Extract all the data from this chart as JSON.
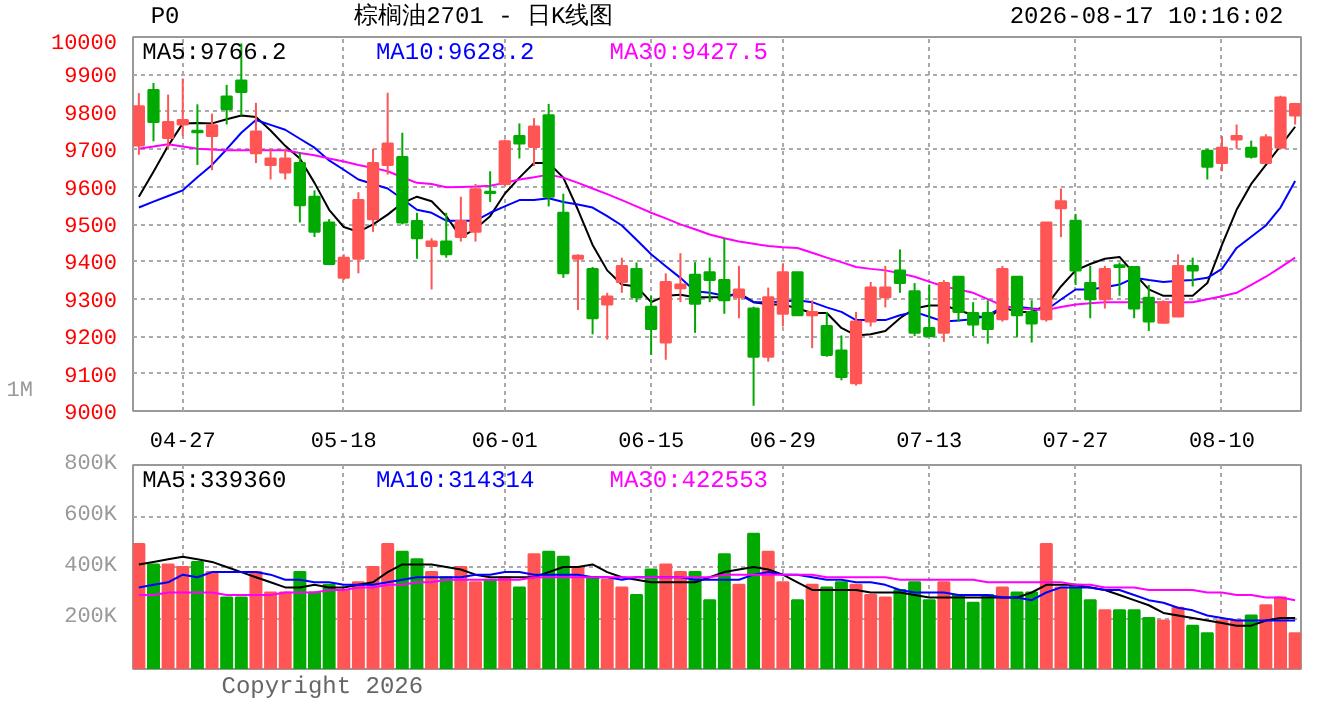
{
  "chart_data": [
    {
      "type": "candlestick",
      "title": "棕榈油2701 - 日K线图",
      "annotations": [
        "P0",
        "2026-08-17 10:16:02",
        "1M"
      ],
      "categories": [
        null,
        null,
        null,
        "04-27",
        null,
        null,
        null,
        null,
        null,
        null,
        null,
        null,
        null,
        null,
        "05-18",
        null,
        null,
        null,
        null,
        null,
        null,
        null,
        null,
        null,
        null,
        "06-01",
        null,
        null,
        null,
        null,
        null,
        null,
        null,
        null,
        null,
        "06-15",
        null,
        null,
        null,
        null,
        null,
        null,
        null,
        null,
        "06-29",
        null,
        null,
        null,
        null,
        null,
        null,
        null,
        null,
        null,
        "07-13",
        null,
        null,
        null,
        null,
        null,
        null,
        null,
        null,
        null,
        "07-27",
        null,
        null,
        null,
        null,
        null,
        null,
        null,
        null,
        null,
        "08-10",
        null,
        null,
        null,
        null,
        null
      ],
      "ohlc": [
        [
          9710,
          9850,
          9685,
          9815
        ],
        [
          9858,
          9877,
          9721,
          9773
        ],
        [
          9730,
          9846,
          9701,
          9773
        ],
        [
          9766,
          9889,
          9735,
          9778
        ],
        [
          9749,
          9820,
          9658,
          9745
        ],
        [
          9735,
          9795,
          9644,
          9764
        ],
        [
          9841,
          9872,
          9766,
          9807
        ],
        [
          9884,
          9983,
          9790,
          9853
        ],
        [
          9689,
          9824,
          9663,
          9747
        ],
        [
          9658,
          9701,
          9619,
          9675
        ],
        [
          9638,
          9701,
          9619,
          9675
        ],
        [
          9663,
          9692,
          9504,
          9550
        ],
        [
          9573,
          9590,
          9465,
          9479
        ],
        [
          9504,
          9513,
          9390,
          9393
        ],
        [
          9356,
          9419,
          9350,
          9410
        ],
        [
          9407,
          9585,
          9368,
          9564
        ],
        [
          9513,
          9701,
          9479,
          9663
        ],
        [
          9658,
          9851,
          9632,
          9715
        ],
        [
          9679,
          9744,
          9499,
          9504
        ],
        [
          9508,
          9530,
          9407,
          9462
        ],
        [
          9441,
          9462,
          9325,
          9453
        ],
        [
          9453,
          9530,
          9410,
          9419
        ],
        [
          9465,
          9573,
          9453,
          9508
        ],
        [
          9479,
          9607,
          9453,
          9593
        ],
        [
          9586,
          9641,
          9559,
          9583
        ],
        [
          9607,
          9726,
          9602,
          9721
        ],
        [
          9735,
          9769,
          9675,
          9715
        ],
        [
          9706,
          9783,
          9655,
          9761
        ],
        [
          9791,
          9821,
          9547,
          9573
        ],
        [
          9530,
          9581,
          9356,
          9368
        ],
        [
          9407,
          9419,
          9270,
          9415
        ],
        [
          9380,
          9385,
          9205,
          9248
        ],
        [
          9285,
          9316,
          9191,
          9306
        ],
        [
          9345,
          9410,
          9316,
          9388
        ],
        [
          9380,
          9397,
          9291,
          9304
        ],
        [
          9279,
          9308,
          9150,
          9219
        ],
        [
          9183,
          9368,
          9137,
          9345
        ],
        [
          9328,
          9422,
          9291,
          9338
        ],
        [
          9364,
          9398,
          9209,
          9287
        ],
        [
          9371,
          9410,
          9291,
          9350
        ],
        [
          9350,
          9462,
          9260,
          9296
        ],
        [
          9304,
          9388,
          9248,
          9325
        ],
        [
          9274,
          9279,
          9014,
          9145
        ],
        [
          9145,
          9330,
          9132,
          9304
        ],
        [
          9260,
          9393,
          9226,
          9371
        ],
        [
          9371,
          9371,
          9256,
          9256
        ],
        [
          9256,
          9296,
          9168,
          9265
        ],
        [
          9227,
          9265,
          9145,
          9150
        ],
        [
          9162,
          9202,
          9082,
          9091
        ],
        [
          9074,
          9265,
          9068,
          9239
        ],
        [
          9239,
          9345,
          9226,
          9330
        ],
        [
          9304,
          9388,
          9277,
          9330
        ],
        [
          9376,
          9432,
          9316,
          9342
        ],
        [
          9320,
          9342,
          9200,
          9209
        ],
        [
          9222,
          9338,
          9200,
          9200
        ],
        [
          9209,
          9350,
          9185,
          9342
        ],
        [
          9359,
          9359,
          9239,
          9265
        ],
        [
          9262,
          9291,
          9200,
          9231
        ],
        [
          9262,
          9296,
          9180,
          9219
        ],
        [
          9245,
          9388,
          9239,
          9380
        ],
        [
          9359,
          9359,
          9197,
          9256
        ],
        [
          9265,
          9296,
          9183,
          9234
        ],
        [
          9245,
          9504,
          9239,
          9504
        ],
        [
          9542,
          9595,
          9465,
          9561
        ],
        [
          9509,
          9527,
          9337,
          9376
        ],
        [
          9342,
          9388,
          9248,
          9299
        ],
        [
          9299,
          9388,
          9274,
          9380
        ],
        [
          9390,
          9397,
          9308,
          9385
        ],
        [
          9385,
          9385,
          9248,
          9274
        ],
        [
          9303,
          9337,
          9214,
          9239
        ],
        [
          9236,
          9296,
          9234,
          9291
        ],
        [
          9253,
          9419,
          9251,
          9388
        ],
        [
          9388,
          9410,
          9333,
          9376
        ],
        [
          9696,
          9701,
          9619,
          9653
        ],
        [
          9663,
          9735,
          9641,
          9704
        ],
        [
          9726,
          9766,
          9701,
          9735
        ],
        [
          9704,
          9723,
          9675,
          9680
        ],
        [
          9663,
          9740,
          9663,
          9732
        ],
        [
          9704,
          9843,
          9701,
          9838
        ],
        [
          9790,
          9824,
          9766,
          9821
        ]
      ],
      "colors": [
        "#ff5555",
        "#00aa00",
        "#ff5555",
        "#ff5555",
        "#00aa00",
        "#ff5555",
        "#00aa00",
        "#00aa00",
        "#ff5555",
        "#ff5555",
        "#ff5555",
        "#00aa00",
        "#00aa00",
        "#00aa00",
        "#ff5555",
        "#ff5555",
        "#ff5555",
        "#ff5555",
        "#00aa00",
        "#00aa00",
        "#ff5555",
        "#00aa00",
        "#ff5555",
        "#ff5555",
        "#00aa00",
        "#ff5555",
        "#00aa00",
        "#ff5555",
        "#00aa00",
        "#00aa00",
        "#ff5555",
        "#00aa00",
        "#ff5555",
        "#ff5555",
        "#00aa00",
        "#00aa00",
        "#ff5555",
        "#ff5555",
        "#00aa00",
        "#00aa00",
        "#00aa00",
        "#ff5555",
        "#00aa00",
        "#ff5555",
        "#ff5555",
        "#00aa00",
        "#ff5555",
        "#00aa00",
        "#00aa00",
        "#ff5555",
        "#ff5555",
        "#ff5555",
        "#00aa00",
        "#00aa00",
        "#00aa00",
        "#ff5555",
        "#00aa00",
        "#00aa00",
        "#00aa00",
        "#ff5555",
        "#00aa00",
        "#00aa00",
        "#ff5555",
        "#ff5555",
        "#00aa00",
        "#00aa00",
        "#ff5555",
        "#00aa00",
        "#00aa00",
        "#00aa00",
        "#ff5555",
        "#ff5555",
        "#00aa00",
        "#00aa00",
        "#ff5555",
        "#ff5555",
        "#00aa00",
        "#ff5555",
        "#ff5555",
        "#ff5555"
      ],
      "series": [
        {
          "name": "MA5:9766.2",
          "type": "line",
          "color": "#000000",
          "values": [
            9573,
            9640,
            9709,
            9769,
            9770,
            9769,
            9780,
            9790,
            9786,
            9750,
            9709,
            9675,
            9610,
            9538,
            9492,
            9479,
            9499,
            9525,
            9556,
            9573,
            9561,
            9521,
            9465,
            9487,
            9521,
            9581,
            9624,
            9663,
            9663,
            9624,
            9538,
            9444,
            9376,
            9338,
            9333,
            9291,
            9308,
            9311,
            9304,
            9304,
            9304,
            9316,
            9291,
            9285,
            9285,
            9274,
            9262,
            9262,
            9222,
            9202,
            9205,
            9214,
            9248,
            9274,
            9282,
            9282,
            9270,
            9256,
            9248,
            9277,
            9265,
            9265,
            9282,
            9333,
            9376,
            9393,
            9407,
            9412,
            9368,
            9325,
            9308,
            9308,
            9308,
            9342,
            9444,
            9538,
            9607,
            9658,
            9709,
            9760
          ]
        },
        {
          "name": "MA10:9628.2",
          "type": "line",
          "color": "#0000ff",
          "values": [
            9544,
            9560,
            9575,
            9590,
            9625,
            9658,
            9700,
            9744,
            9778,
            9765,
            9752,
            9728,
            9704,
            9670,
            9645,
            9619,
            9607,
            9595,
            9567,
            9538,
            9530,
            9509,
            9509,
            9509,
            9530,
            9547,
            9564,
            9564,
            9569,
            9559,
            9552,
            9544,
            9521,
            9496,
            9458,
            9419,
            9387,
            9356,
            9320,
            9316,
            9308,
            9311,
            9291,
            9291,
            9293,
            9296,
            9291,
            9277,
            9265,
            9243,
            9243,
            9243,
            9256,
            9265,
            9252,
            9239,
            9242,
            9245,
            9256,
            9277,
            9279,
            9274,
            9270,
            9298,
            9325,
            9325,
            9331,
            9338,
            9356,
            9350,
            9345,
            9348,
            9350,
            9356,
            9380,
            9436,
            9466,
            9496,
            9544,
            9615
          ]
        },
        {
          "name": "MA30:9427.5",
          "type": "line",
          "color": "#ff00ff",
          "values": [
            9701,
            9707,
            9713,
            9707,
            9701,
            9699,
            9697,
            9697,
            9697,
            9697,
            9697,
            9690,
            9684,
            9675,
            9667,
            9658,
            9650,
            9641,
            9625,
            9610,
            9607,
            9598,
            9599,
            9600,
            9602,
            9610,
            9619,
            9625,
            9632,
            9624,
            9610,
            9595,
            9580,
            9564,
            9547,
            9530,
            9515,
            9499,
            9486,
            9472,
            9462,
            9453,
            9447,
            9441,
            9438,
            9436,
            9423,
            9410,
            9398,
            9385,
            9380,
            9376,
            9368,
            9359,
            9346,
            9333,
            9325,
            9316,
            9299,
            9282,
            9274,
            9272,
            9270,
            9278,
            9285,
            9288,
            9291,
            9291,
            9291,
            9291,
            9291,
            9291,
            9291,
            9299,
            9307,
            9316,
            9337,
            9359,
            9384,
            9410
          ]
        }
      ],
      "ylim": [
        9000,
        10000
      ],
      "yticks": [
        9000,
        9100,
        9200,
        9300,
        9400,
        9500,
        9600,
        9700,
        9800,
        9900,
        10000
      ],
      "grid": true,
      "legend": "top left",
      "line_style": "solid"
    },
    {
      "type": "bar",
      "annotations": [
        "Copyright 2026"
      ],
      "categories": [
        null,
        null,
        null,
        null,
        null,
        null,
        null,
        null,
        null,
        null,
        null,
        null,
        null,
        null,
        null,
        null,
        null,
        null,
        null,
        null,
        null,
        null,
        null,
        null,
        null,
        null,
        null,
        null,
        null,
        null,
        null,
        null,
        null,
        null,
        null,
        null,
        null,
        null,
        null,
        null,
        null,
        null,
        null,
        null,
        null,
        null,
        null,
        null,
        null,
        null,
        null,
        null,
        null,
        null,
        null,
        null,
        null,
        null,
        null,
        null,
        null,
        null,
        null,
        null,
        null,
        null,
        null,
        null,
        null,
        null,
        null,
        null,
        null,
        null,
        null,
        null,
        null,
        null,
        null,
        null
      ],
      "series": [
        {
          "type": "bar",
          "values": [
            490000,
            410000,
            410000,
            400000,
            420000,
            380000,
            280000,
            280000,
            380000,
            300000,
            300000,
            380000,
            300000,
            330000,
            310000,
            340000,
            400000,
            490000,
            460000,
            430000,
            380000,
            360000,
            400000,
            340000,
            350000,
            360000,
            320000,
            450000,
            460000,
            440000,
            400000,
            360000,
            350000,
            320000,
            290000,
            390000,
            410000,
            380000,
            380000,
            270000,
            450000,
            330000,
            530000,
            460000,
            340000,
            270000,
            330000,
            320000,
            340000,
            330000,
            290000,
            280000,
            310000,
            340000,
            270000,
            340000,
            290000,
            260000,
            290000,
            320000,
            300000,
            300000,
            490000,
            320000,
            330000,
            270000,
            230000,
            230000,
            230000,
            200000,
            190000,
            240000,
            170000,
            140000,
            190000,
            190000,
            210000,
            250000,
            280000,
            140000
          ],
          "colors": [
            "#ff5555",
            "#00aa00",
            "#ff5555",
            "#ff5555",
            "#00aa00",
            "#ff5555",
            "#00aa00",
            "#00aa00",
            "#ff5555",
            "#ff5555",
            "#ff5555",
            "#00aa00",
            "#00aa00",
            "#00aa00",
            "#ff5555",
            "#ff5555",
            "#ff5555",
            "#ff5555",
            "#00aa00",
            "#00aa00",
            "#ff5555",
            "#00aa00",
            "#ff5555",
            "#ff5555",
            "#00aa00",
            "#ff5555",
            "#00aa00",
            "#ff5555",
            "#00aa00",
            "#00aa00",
            "#ff5555",
            "#00aa00",
            "#ff5555",
            "#ff5555",
            "#00aa00",
            "#00aa00",
            "#ff5555",
            "#ff5555",
            "#00aa00",
            "#00aa00",
            "#00aa00",
            "#ff5555",
            "#00aa00",
            "#ff5555",
            "#ff5555",
            "#00aa00",
            "#ff5555",
            "#00aa00",
            "#00aa00",
            "#ff5555",
            "#ff5555",
            "#ff5555",
            "#00aa00",
            "#00aa00",
            "#00aa00",
            "#ff5555",
            "#00aa00",
            "#00aa00",
            "#00aa00",
            "#ff5555",
            "#00aa00",
            "#00aa00",
            "#ff5555",
            "#ff5555",
            "#00aa00",
            "#00aa00",
            "#ff5555",
            "#00aa00",
            "#00aa00",
            "#00aa00",
            "#ff5555",
            "#ff5555",
            "#00aa00",
            "#00aa00",
            "#ff5555",
            "#ff5555",
            "#00aa00",
            "#ff5555",
            "#ff5555",
            "#ff5555"
          ]
        },
        {
          "name": "MA5:339360",
          "type": "line",
          "color": "#000000",
          "values": [
            410000,
            420000,
            430000,
            440000,
            430000,
            420000,
            400000,
            380000,
            360000,
            340000,
            320000,
            320000,
            330000,
            320000,
            320000,
            330000,
            340000,
            380000,
            410000,
            410000,
            410000,
            400000,
            390000,
            370000,
            360000,
            360000,
            360000,
            360000,
            380000,
            400000,
            400000,
            410000,
            380000,
            360000,
            350000,
            340000,
            340000,
            340000,
            340000,
            360000,
            380000,
            390000,
            400000,
            390000,
            370000,
            340000,
            310000,
            310000,
            310000,
            310000,
            300000,
            300000,
            300000,
            290000,
            280000,
            280000,
            280000,
            280000,
            280000,
            280000,
            280000,
            300000,
            330000,
            330000,
            330000,
            320000,
            310000,
            290000,
            270000,
            250000,
            220000,
            210000,
            200000,
            190000,
            180000,
            170000,
            170000,
            190000,
            200000,
            200000
          ]
        },
        {
          "name": "MA10:314314",
          "type": "line",
          "color": "#0000ff",
          "values": [
            320000,
            330000,
            340000,
            370000,
            360000,
            380000,
            380000,
            380000,
            380000,
            370000,
            350000,
            350000,
            340000,
            340000,
            330000,
            330000,
            330000,
            340000,
            350000,
            360000,
            360000,
            360000,
            360000,
            370000,
            370000,
            380000,
            380000,
            370000,
            370000,
            370000,
            370000,
            360000,
            360000,
            350000,
            360000,
            360000,
            360000,
            360000,
            350000,
            350000,
            350000,
            350000,
            370000,
            380000,
            370000,
            370000,
            360000,
            350000,
            350000,
            340000,
            340000,
            330000,
            310000,
            300000,
            300000,
            300000,
            290000,
            290000,
            290000,
            280000,
            280000,
            270000,
            300000,
            320000,
            320000,
            320000,
            310000,
            310000,
            290000,
            270000,
            260000,
            240000,
            230000,
            210000,
            200000,
            190000,
            190000,
            190000,
            190000,
            190000
          ]
        },
        {
          "name": "MA30:422553",
          "type": "line",
          "color": "#ff00ff",
          "values": [
            290000,
            290000,
            300000,
            300000,
            300000,
            300000,
            290000,
            290000,
            290000,
            290000,
            300000,
            300000,
            300000,
            310000,
            310000,
            320000,
            320000,
            330000,
            330000,
            340000,
            340000,
            350000,
            350000,
            350000,
            350000,
            350000,
            350000,
            360000,
            360000,
            360000,
            360000,
            360000,
            360000,
            360000,
            360000,
            360000,
            360000,
            360000,
            360000,
            360000,
            370000,
            370000,
            370000,
            370000,
            370000,
            370000,
            370000,
            360000,
            360000,
            360000,
            360000,
            360000,
            350000,
            350000,
            350000,
            350000,
            350000,
            350000,
            340000,
            340000,
            340000,
            340000,
            340000,
            340000,
            330000,
            330000,
            320000,
            320000,
            320000,
            310000,
            310000,
            310000,
            310000,
            300000,
            300000,
            290000,
            290000,
            280000,
            280000,
            270000
          ]
        }
      ],
      "ylim": [
        0,
        800000
      ],
      "yticks": [
        {
          "value": 200000,
          "label": "200K"
        },
        {
          "value": 400000,
          "label": "400K"
        },
        {
          "value": 600000,
          "label": "600K"
        },
        {
          "value": 800000,
          "label": "800K"
        }
      ],
      "tick_labels": "y",
      "grid": true,
      "legend": "top left",
      "line_style": "solid"
    }
  ]
}
